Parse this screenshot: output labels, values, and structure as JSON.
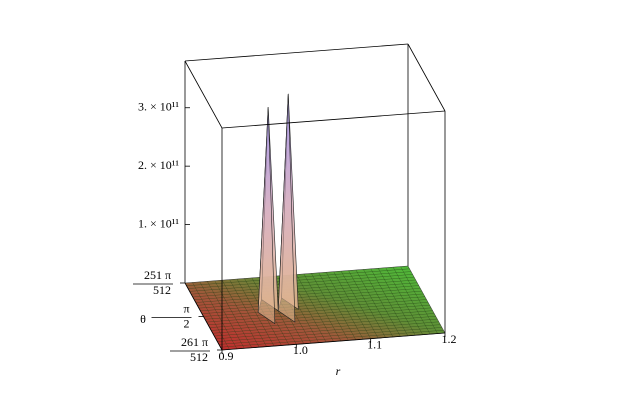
{
  "chart_data": {
    "type": "surface3d",
    "x_label": "r",
    "y_label": "θ",
    "xlim": [
      0.9,
      1.2
    ],
    "xticks": [
      0.9,
      {
        "value": 1.0,
        "label": "1.0"
      },
      1.1,
      1.2
    ],
    "ylim": [
      1.5401167,
      1.6014759
    ],
    "yticks": [
      {
        "value": 1.5401167,
        "label": "251 π/512"
      },
      {
        "value": 1.5707963,
        "label": "π/2"
      },
      {
        "value": 1.6014759,
        "label": "261 π/512"
      }
    ],
    "zlim": [
      0,
      380000000000
    ],
    "zticks": [
      {
        "value": 100000000000,
        "label": "1. × 10¹¹"
      },
      {
        "value": 200000000000,
        "label": "2. × 10¹¹"
      },
      {
        "value": 300000000000,
        "label": "3. × 10¹¹"
      }
    ],
    "peaks": {
      "r": [
        0.987,
        1.014
      ],
      "theta": [
        1.5708,
        1.5708
      ],
      "z": [
        350000000000,
        370000000000
      ]
    }
  }
}
